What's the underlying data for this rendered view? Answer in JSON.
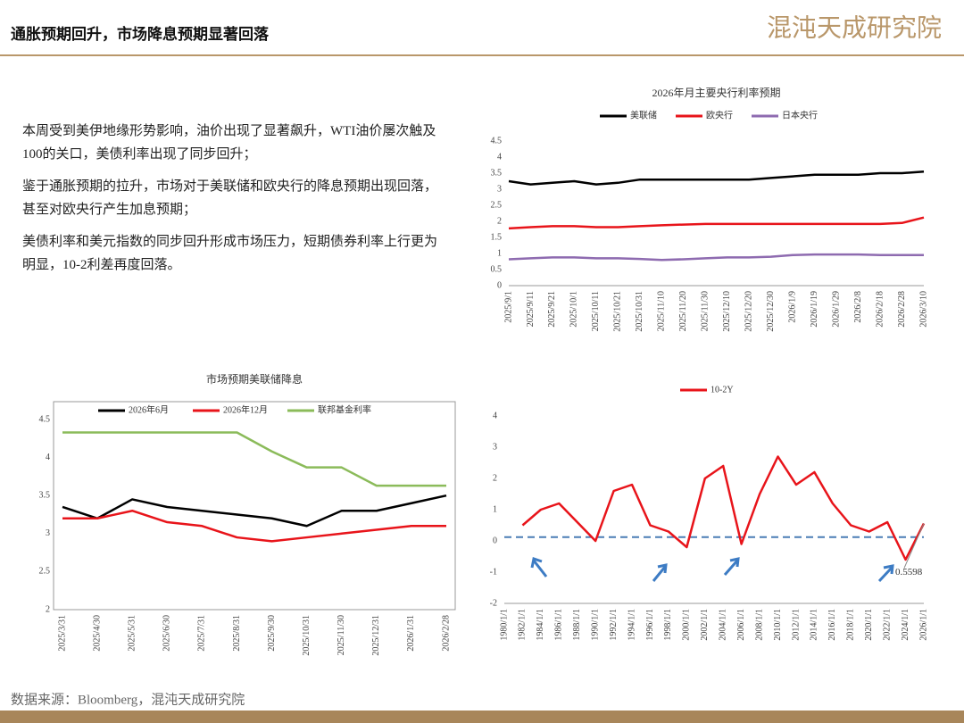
{
  "header": {
    "title": "通胀预期回升，市场降息预期显著回落",
    "logo": "混沌天成研究院"
  },
  "paragraphs": [
    "本周受到美伊地缘形势影响，油价出现了显著飙升，WTI油价屡次触及100的关口，美债利率出现了同步回升；",
    "鉴于通胀预期的拉升，市场对于美联储和欧央行的降息预期出现回落，甚至对欧央行产生加息预期；",
    "美债利率和美元指数的同步回升形成市场压力，短期债券利率上行更为明显，10-2利差再度回落。"
  ],
  "source": "数据来源：Bloomberg，混沌天成研究院",
  "chart_data": [
    {
      "type": "line",
      "title": "2026年月主要央行利率预期",
      "categories": [
        "2025/9/1",
        "2025/9/11",
        "2025/9/21",
        "2025/10/1",
        "2025/10/11",
        "2025/10/21",
        "2025/10/31",
        "2025/11/10",
        "2025/11/20",
        "2025/11/30",
        "2025/12/10",
        "2025/12/20",
        "2025/12/30",
        "2026/1/9",
        "2026/1/19",
        "2026/1/29",
        "2026/2/8",
        "2026/2/18",
        "2026/2/28",
        "2026/3/10"
      ],
      "series": [
        {
          "name": "美联储",
          "color": "#000000",
          "values": [
            3.25,
            3.15,
            3.2,
            3.25,
            3.15,
            3.2,
            3.3,
            3.3,
            3.3,
            3.3,
            3.3,
            3.3,
            3.35,
            3.4,
            3.45,
            3.45,
            3.45,
            3.5,
            3.5,
            3.55
          ]
        },
        {
          "name": "欧央行",
          "color": "#e8141a",
          "values": [
            1.78,
            1.82,
            1.85,
            1.85,
            1.82,
            1.82,
            1.85,
            1.88,
            1.9,
            1.92,
            1.92,
            1.92,
            1.92,
            1.92,
            1.92,
            1.92,
            1.92,
            1.92,
            1.95,
            2.12
          ]
        },
        {
          "name": "日本央行",
          "color": "#8e6bb0",
          "values": [
            0.82,
            0.85,
            0.88,
            0.88,
            0.85,
            0.85,
            0.83,
            0.8,
            0.82,
            0.85,
            0.88,
            0.88,
            0.9,
            0.95,
            0.97,
            0.97,
            0.97,
            0.95,
            0.95,
            0.95
          ]
        }
      ],
      "ylim": [
        0,
        4.5
      ],
      "yticks": [
        0,
        0.5,
        1,
        1.5,
        2,
        2.5,
        3,
        3.5,
        4,
        4.5
      ]
    },
    {
      "type": "line",
      "title": "市场预期美联储降息",
      "categories": [
        "2025/3/31",
        "2025/4/30",
        "2025/5/31",
        "2025/6/30",
        "2025/7/31",
        "2025/8/31",
        "2025/9/30",
        "2025/10/31",
        "2025/11/30",
        "2025/12/31",
        "2026/1/31",
        "2026/2/28"
      ],
      "series": [
        {
          "name": "2026年6月",
          "color": "#000000",
          "values": [
            3.35,
            3.2,
            3.45,
            3.35,
            3.3,
            3.25,
            3.2,
            3.1,
            3.3,
            3.3,
            3.4,
            3.5
          ]
        },
        {
          "name": "2026年12月",
          "color": "#e8141a",
          "values": [
            3.2,
            3.2,
            3.3,
            3.15,
            3.1,
            2.95,
            2.9,
            2.95,
            3.0,
            3.05,
            3.1,
            3.1
          ]
        },
        {
          "name": "联邦基金利率",
          "color": "#8bbb5a",
          "values": [
            4.33,
            4.33,
            4.33,
            4.33,
            4.33,
            4.33,
            4.08,
            3.87,
            3.87,
            3.63,
            3.63,
            3.63
          ]
        }
      ],
      "ylim": [
        2,
        4.5
      ],
      "yticks": [
        2,
        2.5,
        3,
        3.5,
        4,
        4.5
      ],
      "frame": true
    },
    {
      "type": "line",
      "categories": [
        "1980/1/1",
        "1982/1/1",
        "1984/1/1",
        "1986/1/1",
        "1988/1/1",
        "1990/1/1",
        "1992/1/1",
        "1994/1/1",
        "1996/1/1",
        "1998/1/1",
        "2000/1/1",
        "2002/1/1",
        "2004/1/1",
        "2006/1/1",
        "2008/1/1",
        "2010/1/1",
        "2012/1/1",
        "2014/1/1",
        "2016/1/1",
        "2018/1/1",
        "2020/1/1",
        "2022/1/1",
        "2024/1/1",
        "2026/1/1"
      ],
      "series": [
        {
          "name": "10-2Y",
          "color": "#e8141a",
          "values": [
            null,
            0.5,
            1.0,
            1.2,
            0.6,
            0.0,
            1.6,
            1.8,
            0.5,
            0.3,
            -0.2,
            2.0,
            2.4,
            -0.1,
            1.5,
            2.7,
            1.8,
            2.2,
            1.2,
            0.5,
            0.3,
            0.6,
            -0.6,
            0.5598
          ]
        }
      ],
      "ylim": [
        -2,
        4
      ],
      "yticks": [
        -2,
        -1,
        0,
        1,
        2,
        3,
        4
      ],
      "hline": 0.12,
      "annotation": {
        "text": "0.5598",
        "value": 0.5598
      }
    }
  ]
}
